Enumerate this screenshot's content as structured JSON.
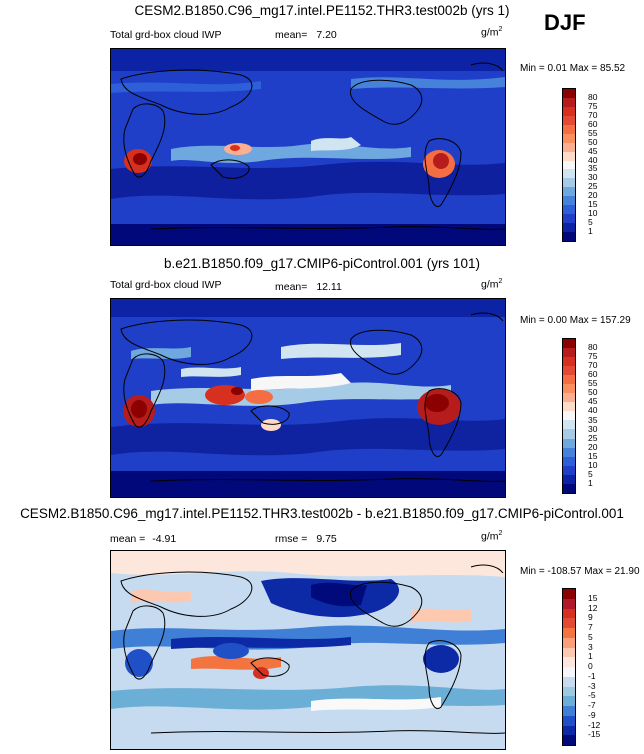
{
  "season": "DJF",
  "panels": [
    {
      "id": "test",
      "title": "CESM2.B1850.C96_mg17.intel.PE1152.THR3.test002b (yrs 1)",
      "field": "Total grd-box cloud IWP",
      "stat_label": "mean=",
      "stat_value": "7.20",
      "stat2_label": "",
      "stat2_value": "",
      "units": "g/m",
      "units_sup": "2",
      "min_max": "Min =  0.01 Max =  85.52",
      "levels": [
        "80",
        "75",
        "70",
        "60",
        "55",
        "50",
        "45",
        "40",
        "35",
        "30",
        "25",
        "20",
        "15",
        "10",
        "5",
        "1"
      ],
      "colors": [
        "#8b0000",
        "#b71c1c",
        "#d7301f",
        "#e34a33",
        "#f46d43",
        "#f98e5e",
        "#fcae91",
        "#fddbc7",
        "#f7f7f7",
        "#d1e5f0",
        "#a6cbe7",
        "#6fa7df",
        "#4682d9",
        "#2f5fd8",
        "#1f3fc8",
        "#0d23a6",
        "#00087a"
      ]
    },
    {
      "id": "control",
      "title": "b.e21.B1850.f09_g17.CMIP6-piControl.001 (yrs 101)",
      "field": "Total grd-box cloud IWP",
      "stat_label": "mean=",
      "stat_value": "12.11",
      "stat2_label": "",
      "stat2_value": "",
      "units": "g/m",
      "units_sup": "2",
      "min_max": "Min =  0.00 Max = 157.29",
      "levels": [
        "80",
        "75",
        "70",
        "60",
        "55",
        "50",
        "45",
        "40",
        "35",
        "30",
        "25",
        "20",
        "15",
        "10",
        "5",
        "1"
      ],
      "colors": [
        "#8b0000",
        "#b71c1c",
        "#d7301f",
        "#e34a33",
        "#f46d43",
        "#f98e5e",
        "#fcae91",
        "#fddbc7",
        "#f7f7f7",
        "#d1e5f0",
        "#a6cbe7",
        "#6fa7df",
        "#4682d9",
        "#2f5fd8",
        "#1f3fc8",
        "#0d23a6",
        "#00087a"
      ]
    },
    {
      "id": "difference",
      "title": "CESM2.B1850.C96_mg17.intel.PE1152.THR3.test002b - b.e21.B1850.f09_g17.CMIP6-piControl.001",
      "field": "",
      "stat_label": "mean =",
      "stat_value": "-4.91",
      "stat2_label": "rmse =",
      "stat2_value": "9.75",
      "units": "g/m",
      "units_sup": "2",
      "min_max": "Min = -108.57 Max =  21.90",
      "levels": [
        "15",
        "12",
        "9",
        "7",
        "5",
        "3",
        "1",
        "0",
        "-1",
        "-3",
        "-5",
        "-7",
        "-9",
        "-12",
        "-15"
      ],
      "colors": [
        "#8b0000",
        "#b2182b",
        "#d6301f",
        "#e34a33",
        "#f4743f",
        "#f9a07a",
        "#fcc8b0",
        "#fde7dc",
        "#f4f6fb",
        "#c6dbef",
        "#9ecae1",
        "#6baed6",
        "#3f7fd6",
        "#2050c8",
        "#0d2aa6",
        "#000a7a"
      ]
    }
  ]
}
